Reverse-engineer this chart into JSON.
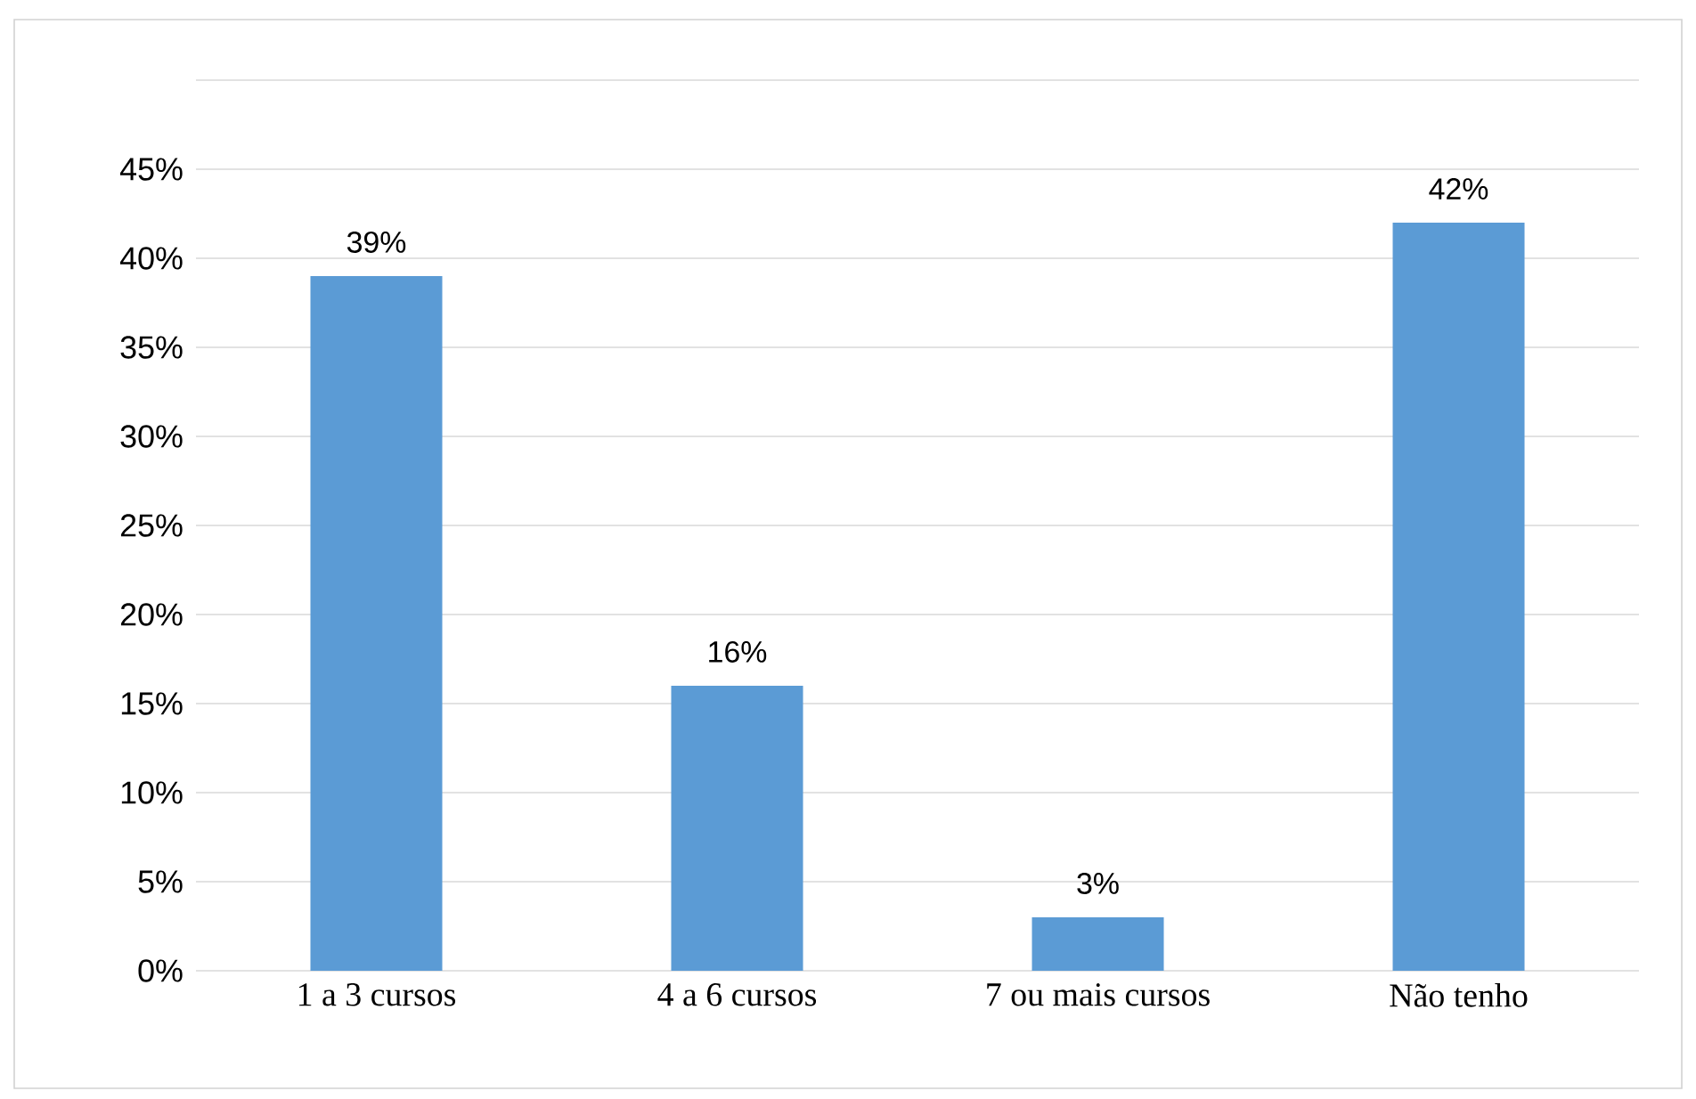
{
  "chart_data": {
    "type": "bar",
    "categories": [
      "1 a 3 cursos",
      "4 a 6 cursos",
      "7 ou mais cursos",
      "Não tenho"
    ],
    "values": [
      39,
      16,
      3,
      42
    ],
    "value_labels": [
      "39%",
      "16%",
      "3%",
      "42%"
    ],
    "color": "#5b9bd5",
    "ylim": [
      0,
      50
    ],
    "yticks": [
      {
        "value": 0,
        "label": "0%"
      },
      {
        "value": 5,
        "label": "5%"
      },
      {
        "value": 10,
        "label": "10%"
      },
      {
        "value": 15,
        "label": "15%"
      },
      {
        "value": 20,
        "label": "20%"
      },
      {
        "value": 25,
        "label": "25%"
      },
      {
        "value": 30,
        "label": "30%"
      },
      {
        "value": 35,
        "label": "35%"
      },
      {
        "value": 40,
        "label": "40%"
      },
      {
        "value": 45,
        "label": "45%"
      },
      {
        "value": 50,
        "label": null
      }
    ],
    "grid": true
  }
}
